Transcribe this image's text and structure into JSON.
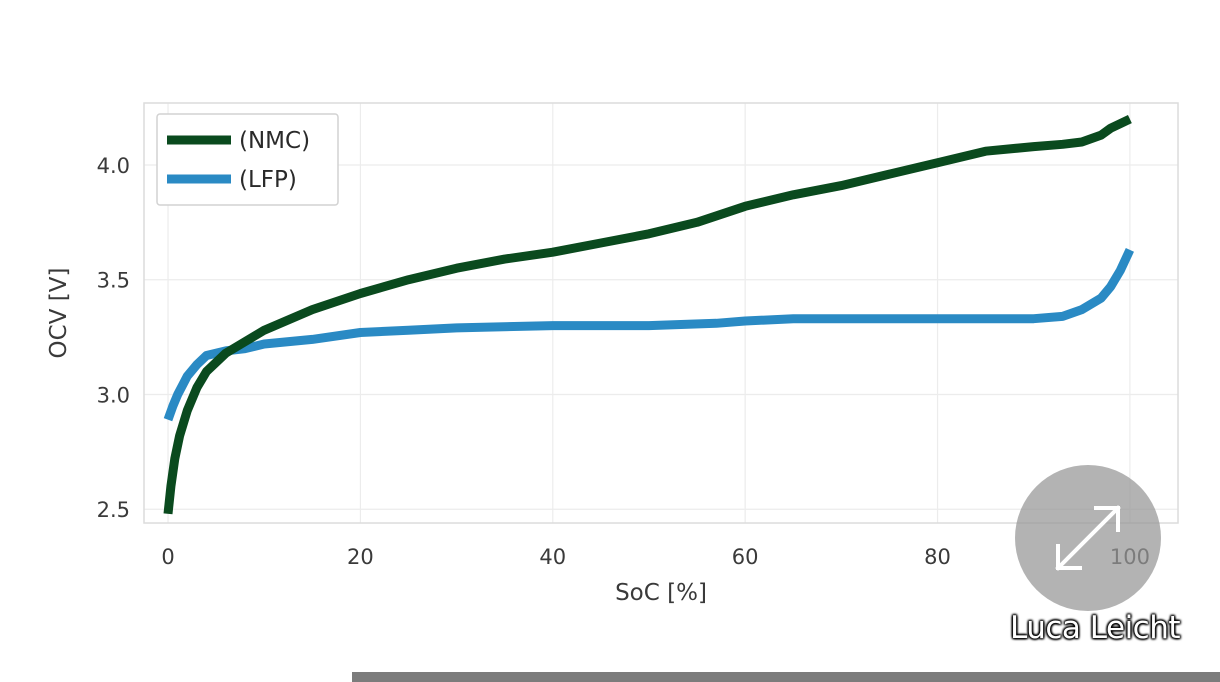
{
  "chart_data": {
    "type": "line",
    "title": "",
    "xlabel": "SoC [%]",
    "ylabel": "OCV [V]",
    "xlim": [
      -2.5,
      105
    ],
    "ylim": [
      2.44,
      4.27
    ],
    "xticks": [
      0,
      20,
      40,
      60,
      80,
      100
    ],
    "yticks": [
      2.5,
      3.0,
      3.5,
      4.0
    ],
    "xtick_labels": [
      "0",
      "20",
      "40",
      "60",
      "80",
      "100"
    ],
    "ytick_labels": [
      "2.5",
      "3.0",
      "3.5",
      "4.0"
    ],
    "grid": true,
    "legend_position": "top-left",
    "series": [
      {
        "name": "(NMC)",
        "color": "#0a4a1e",
        "x": [
          0,
          0.3,
          0.7,
          1.2,
          2,
          3,
          4,
          6,
          8,
          10,
          15,
          20,
          25,
          30,
          35,
          40,
          45,
          50,
          55,
          60,
          65,
          70,
          75,
          80,
          85,
          90,
          93,
          95,
          97,
          98,
          100
        ],
        "y": [
          2.48,
          2.6,
          2.72,
          2.82,
          2.93,
          3.03,
          3.1,
          3.18,
          3.23,
          3.28,
          3.37,
          3.44,
          3.5,
          3.55,
          3.59,
          3.62,
          3.66,
          3.7,
          3.75,
          3.82,
          3.87,
          3.91,
          3.96,
          4.01,
          4.06,
          4.08,
          4.09,
          4.1,
          4.13,
          4.16,
          4.2
        ]
      },
      {
        "name": "(LFP)",
        "color": "#2a8ac4",
        "x": [
          0,
          0.5,
          1,
          2,
          3,
          4,
          6,
          8,
          10,
          15,
          20,
          25,
          30,
          40,
          50,
          57,
          60,
          65,
          70,
          80,
          90,
          93,
          95,
          97,
          98,
          99,
          100
        ],
        "y": [
          2.89,
          2.95,
          3.0,
          3.08,
          3.13,
          3.17,
          3.19,
          3.2,
          3.22,
          3.24,
          3.27,
          3.28,
          3.29,
          3.3,
          3.3,
          3.31,
          3.32,
          3.33,
          3.33,
          3.33,
          3.33,
          3.34,
          3.37,
          3.42,
          3.47,
          3.54,
          3.63
        ]
      }
    ]
  },
  "overlay": {
    "watermark": "Luca Leicht",
    "expand_icon": "expand-diagonal-arrows-icon",
    "progress_fraction": 1.0
  }
}
